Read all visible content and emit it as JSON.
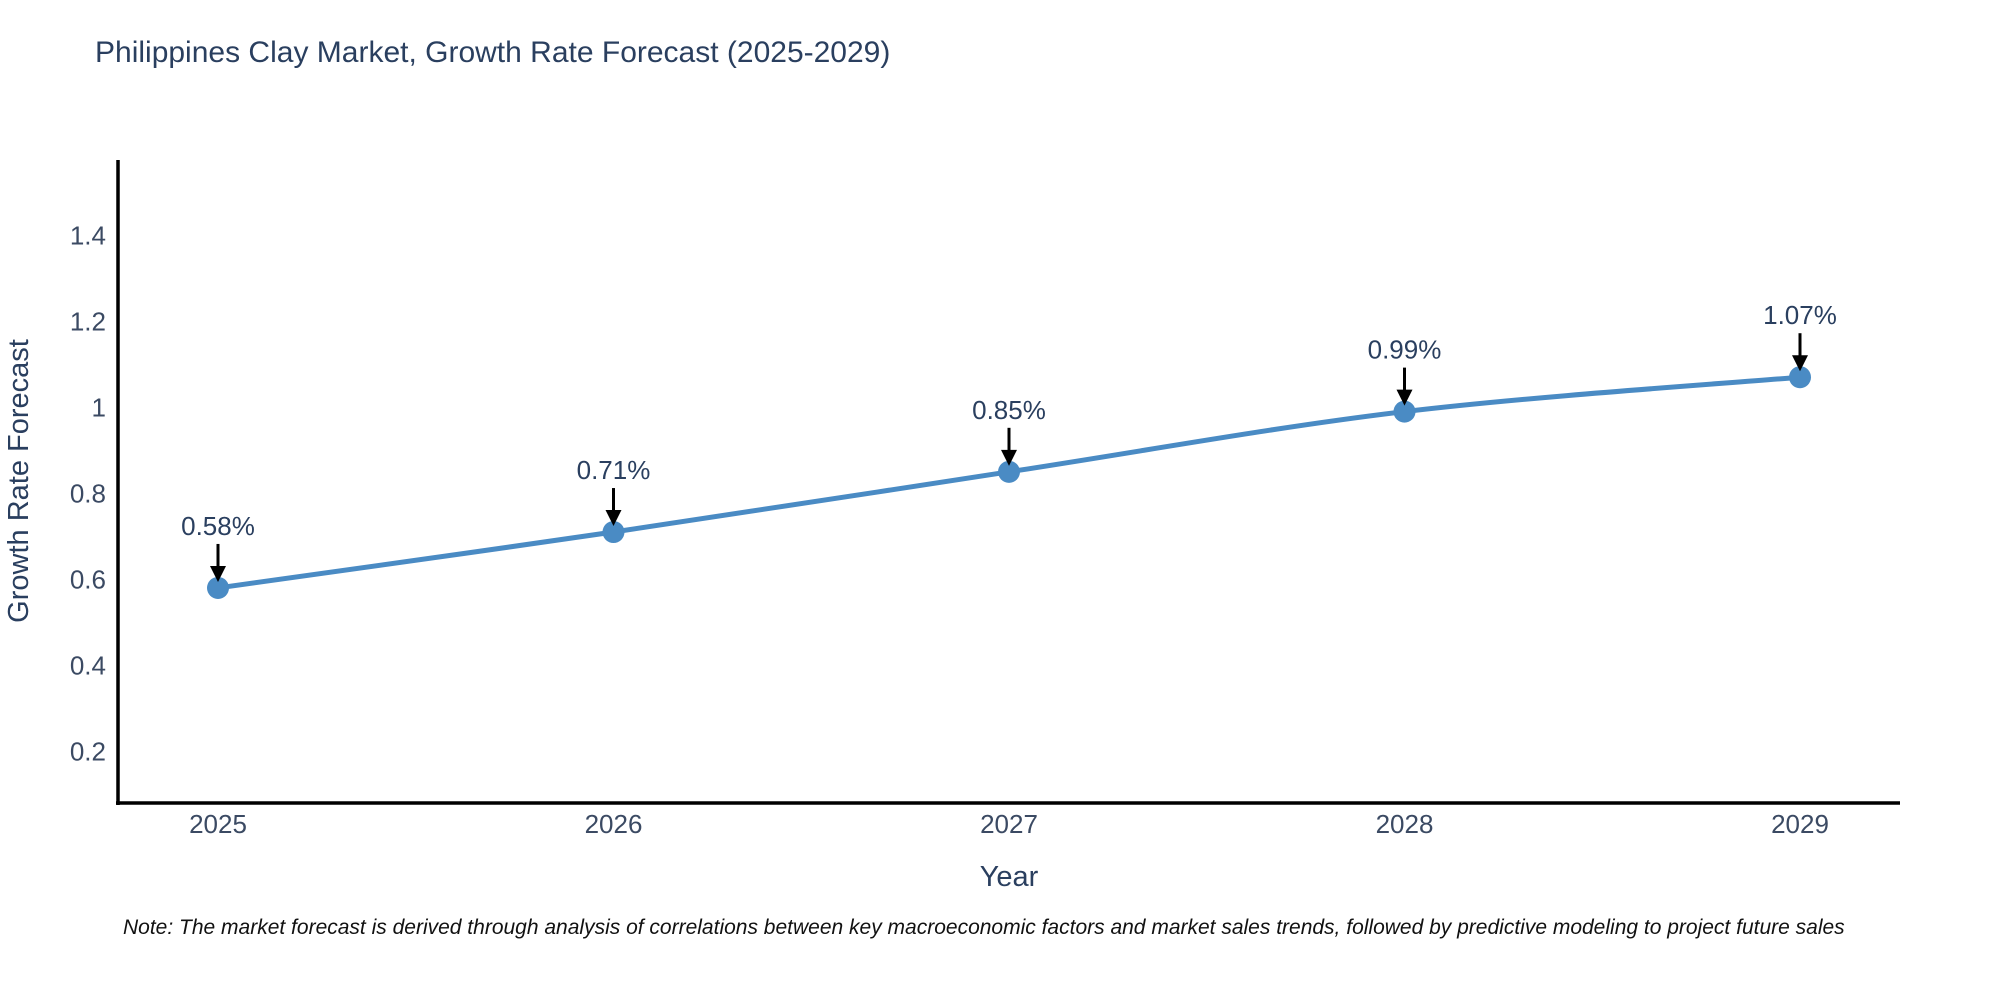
{
  "title": "Philippines Clay Market, Growth Rate Forecast (2025-2029)",
  "note": "Note: The market forecast is derived through analysis of correlations between key macroeconomic factors and market sales trends, followed by predictive modeling to project future sales",
  "chart_data": {
    "type": "line",
    "title": "Philippines Clay Market, Growth Rate Forecast (2025-2029)",
    "xlabel": "Year",
    "ylabel": "Growth Rate Forecast",
    "categories": [
      "2025",
      "2026",
      "2027",
      "2028",
      "2029"
    ],
    "series": [
      {
        "name": "Growth Rate Forecast",
        "values": [
          0.58,
          0.71,
          0.85,
          0.99,
          1.07
        ],
        "point_labels": [
          "0.58%",
          "0.71%",
          "0.85%",
          "0.99%",
          "1.07%"
        ]
      }
    ],
    "yticks": [
      0.2,
      0.4,
      0.6,
      0.8,
      1,
      1.2,
      1.4
    ],
    "ylim": [
      0.08,
      1.575
    ],
    "grid": false,
    "legend": false,
    "colors": {
      "line": "#4a8bc4",
      "marker": "#4a8bc4",
      "axis_line": "#000000",
      "tick_label": "#3b4a63",
      "title": "#2a3f5f",
      "annotation_text": "#2a3f5f",
      "annotation_arrow": "#000000",
      "background": "#ffffff"
    }
  }
}
